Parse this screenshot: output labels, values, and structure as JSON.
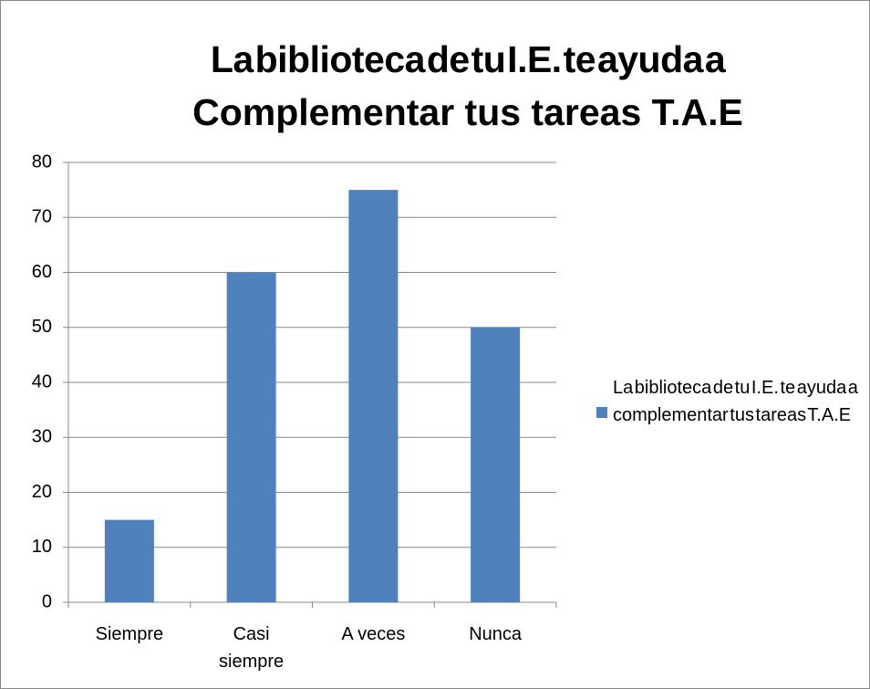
{
  "chart_data": {
    "type": "bar",
    "title": [
      "La biblioteca de tu I.E. te ayuda a",
      "Complementar tus tareas T.A.E"
    ],
    "categories": [
      "Siempre",
      "Casi siempre",
      "A veces",
      "Nunca"
    ],
    "series": [
      {
        "name": "La biblioteca de tu I.E. te ayuda a complementar tus tareas T.A.E",
        "color": "#4f81bd",
        "values": [
          15,
          60,
          75,
          50
        ]
      }
    ],
    "ylim": [
      0,
      80
    ],
    "yticks": [
      0,
      10,
      20,
      30,
      40,
      50,
      60,
      70,
      80
    ],
    "grid": true,
    "legend": "right"
  }
}
